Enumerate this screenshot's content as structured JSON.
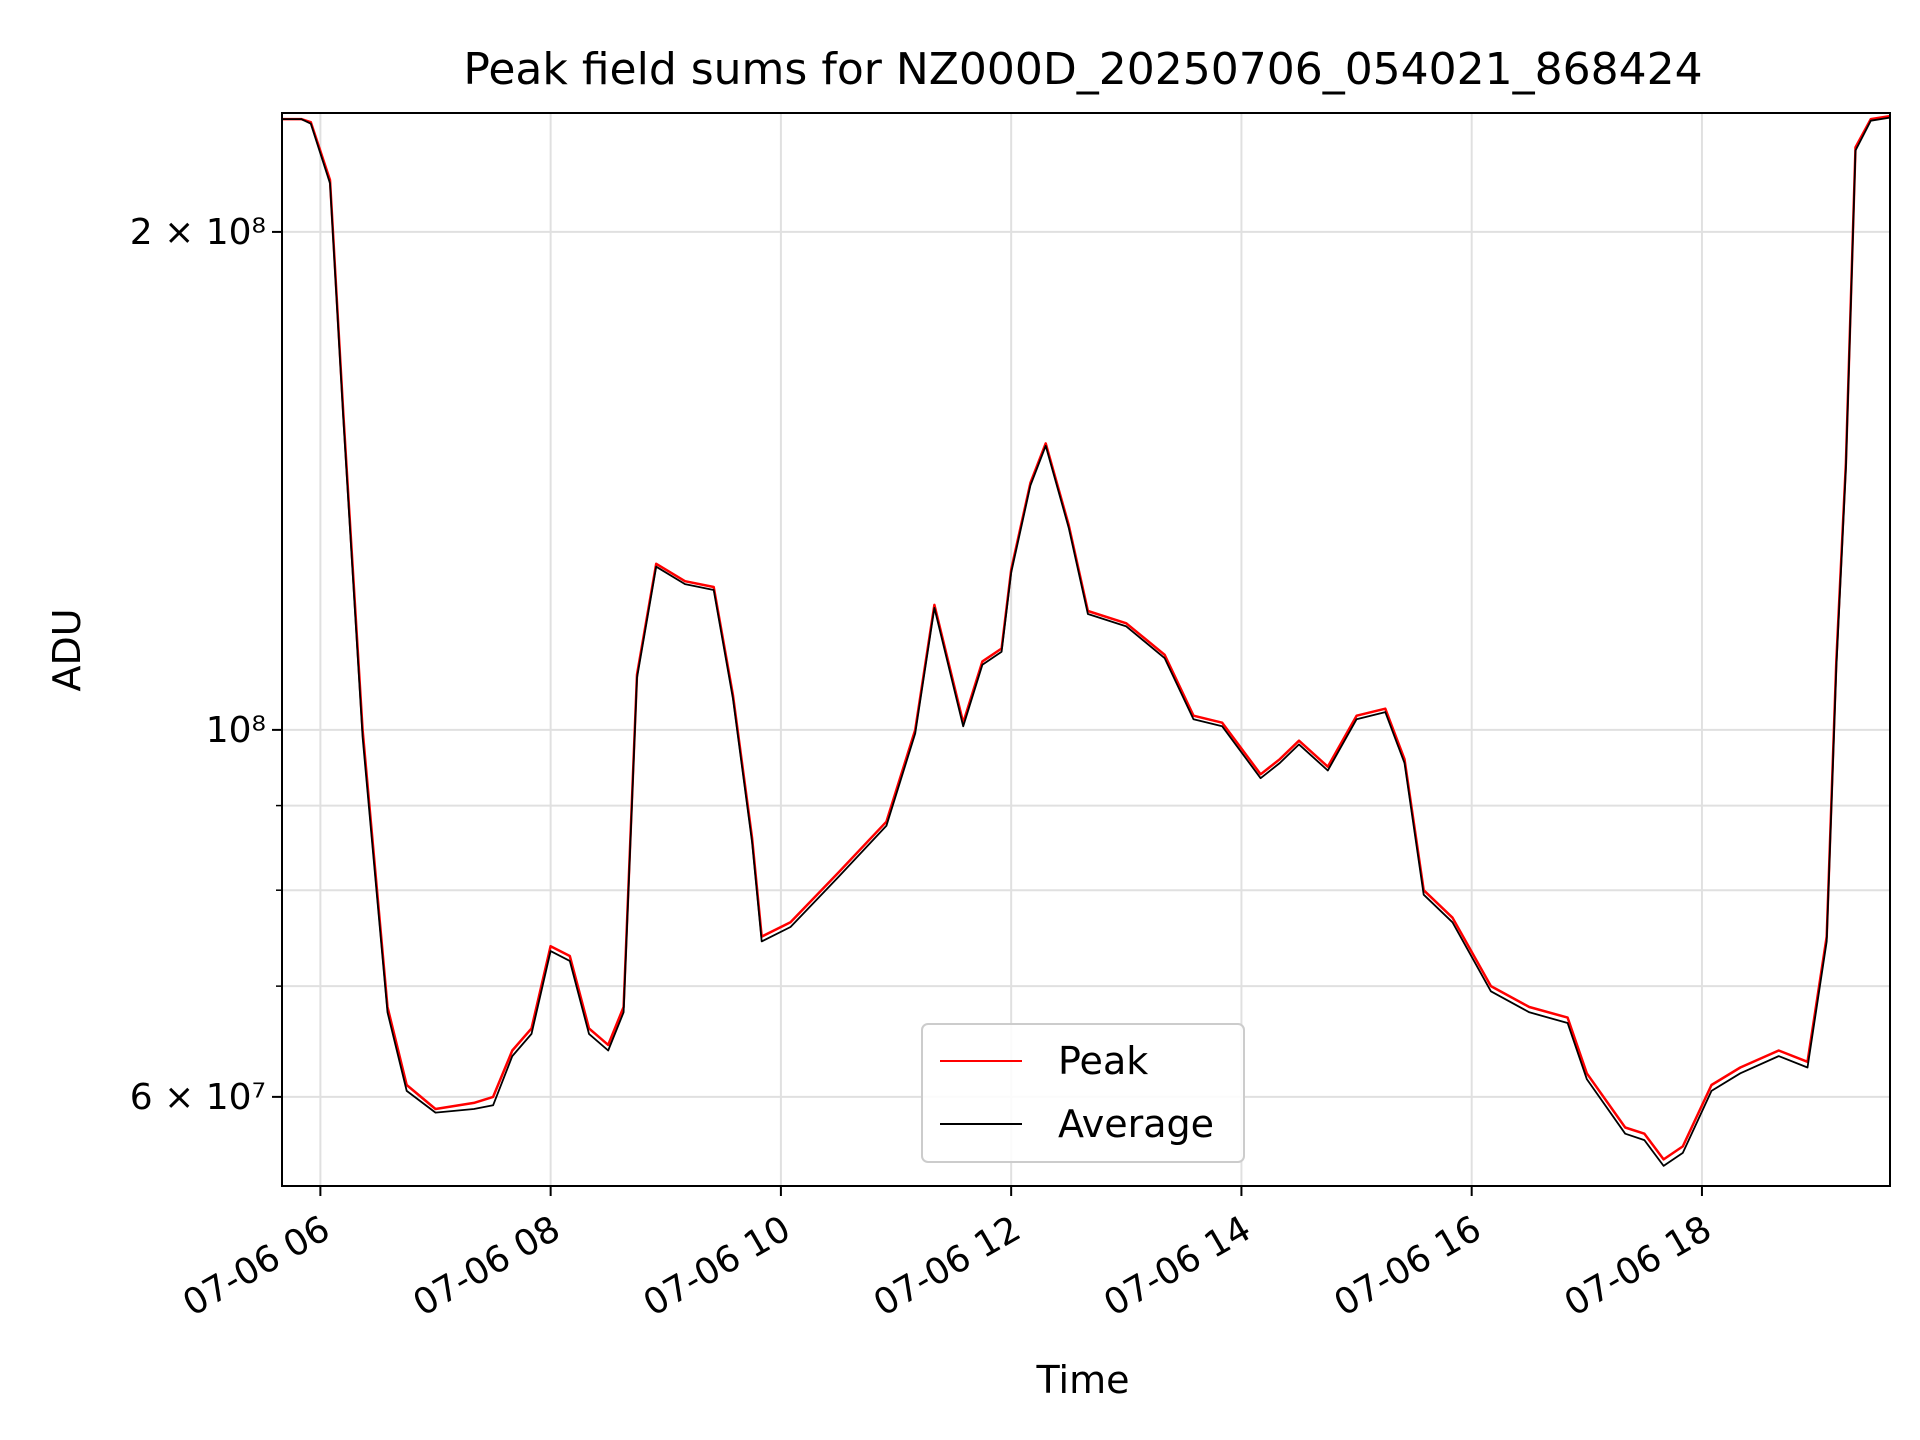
{
  "chart_data": {
    "type": "line",
    "title": "Peak field sums for NZ000D_20250706_054021_868424",
    "xlabel": "Time",
    "ylabel": "ADU",
    "y_scale": "log",
    "grid": true,
    "legend_position": "lower center",
    "xlim": [
      "2025-07-06 05:40",
      "2025-07-06 19:38"
    ],
    "ylim": [
      53000000,
      236000000
    ],
    "x_ticks": [
      {
        "value": "2025-07-06 06:00",
        "label": "07-06 06"
      },
      {
        "value": "2025-07-06 08:00",
        "label": "07-06 08"
      },
      {
        "value": "2025-07-06 10:00",
        "label": "07-06 10"
      },
      {
        "value": "2025-07-06 12:00",
        "label": "07-06 12"
      },
      {
        "value": "2025-07-06 14:00",
        "label": "07-06 14"
      },
      {
        "value": "2025-07-06 16:00",
        "label": "07-06 16"
      },
      {
        "value": "2025-07-06 18:00",
        "label": "07-06 18"
      }
    ],
    "y_ticks_major": [
      {
        "value": 60000000,
        "label": "6 × 10⁷"
      },
      {
        "value": 100000000,
        "label": "10⁸"
      },
      {
        "value": 200000000,
        "label": "2 × 10⁸"
      }
    ],
    "y_ticks_minor": [
      70000000,
      80000000,
      90000000
    ],
    "series": [
      {
        "name": "Peak",
        "color": "#ff0000",
        "x": [
          "2025-07-06 05:40",
          "2025-07-06 05:50",
          "2025-07-06 05:55",
          "2025-07-06 06:05",
          "2025-07-06 06:12",
          "2025-07-06 06:22",
          "2025-07-06 06:35",
          "2025-07-06 06:45",
          "2025-07-06 07:00",
          "2025-07-06 07:20",
          "2025-07-06 07:30",
          "2025-07-06 07:40",
          "2025-07-06 07:50",
          "2025-07-06 08:00",
          "2025-07-06 08:10",
          "2025-07-06 08:20",
          "2025-07-06 08:30",
          "2025-07-06 08:38",
          "2025-07-06 08:45",
          "2025-07-06 08:55",
          "2025-07-06 09:10",
          "2025-07-06 09:25",
          "2025-07-06 09:35",
          "2025-07-06 09:45",
          "2025-07-06 09:50",
          "2025-07-06 10:05",
          "2025-07-06 10:30",
          "2025-07-06 10:55",
          "2025-07-06 11:10",
          "2025-07-06 11:20",
          "2025-07-06 11:35",
          "2025-07-06 11:45",
          "2025-07-06 11:55",
          "2025-07-06 12:00",
          "2025-07-06 12:10",
          "2025-07-06 12:18",
          "2025-07-06 12:30",
          "2025-07-06 12:40",
          "2025-07-06 13:00",
          "2025-07-06 13:20",
          "2025-07-06 13:35",
          "2025-07-06 13:50",
          "2025-07-06 14:10",
          "2025-07-06 14:20",
          "2025-07-06 14:30",
          "2025-07-06 14:45",
          "2025-07-06 15:00",
          "2025-07-06 15:15",
          "2025-07-06 15:25",
          "2025-07-06 15:35",
          "2025-07-06 15:50",
          "2025-07-06 16:10",
          "2025-07-06 16:30",
          "2025-07-06 16:50",
          "2025-07-06 17:00",
          "2025-07-06 17:20",
          "2025-07-06 17:30",
          "2025-07-06 17:40",
          "2025-07-06 17:50",
          "2025-07-06 18:05",
          "2025-07-06 18:20",
          "2025-07-06 18:40",
          "2025-07-06 18:55",
          "2025-07-06 19:05",
          "2025-07-06 19:10",
          "2025-07-06 19:15",
          "2025-07-06 19:20",
          "2025-07-06 19:28",
          "2025-07-06 19:38"
        ],
        "values": [
          234000000,
          234000000,
          233000000,
          215000000,
          155000000,
          100000000,
          68000000,
          61000000,
          59000000,
          59500000,
          60000000,
          64000000,
          66000000,
          74000000,
          73000000,
          66000000,
          64500000,
          68000000,
          108000000,
          126000000,
          123000000,
          122000000,
          105000000,
          86000000,
          75000000,
          76500000,
          82000000,
          88000000,
          100000000,
          119000000,
          101000000,
          110000000,
          112000000,
          125000000,
          141000000,
          149000000,
          133000000,
          118000000,
          116000000,
          111000000,
          102000000,
          101000000,
          94000000,
          96000000,
          98500000,
          95000000,
          102000000,
          103000000,
          96000000,
          80000000,
          77000000,
          70000000,
          68000000,
          67000000,
          62000000,
          57500000,
          57000000,
          55000000,
          56000000,
          61000000,
          62500000,
          64000000,
          63000000,
          75000000,
          110000000,
          145000000,
          225000000,
          234000000,
          235000000
        ]
      },
      {
        "name": "Average",
        "color": "#000000",
        "x": [
          "2025-07-06 05:40",
          "2025-07-06 05:50",
          "2025-07-06 05:55",
          "2025-07-06 06:05",
          "2025-07-06 06:12",
          "2025-07-06 06:22",
          "2025-07-06 06:35",
          "2025-07-06 06:45",
          "2025-07-06 07:00",
          "2025-07-06 07:20",
          "2025-07-06 07:30",
          "2025-07-06 07:40",
          "2025-07-06 07:50",
          "2025-07-06 08:00",
          "2025-07-06 08:10",
          "2025-07-06 08:20",
          "2025-07-06 08:30",
          "2025-07-06 08:38",
          "2025-07-06 08:45",
          "2025-07-06 08:55",
          "2025-07-06 09:10",
          "2025-07-06 09:25",
          "2025-07-06 09:35",
          "2025-07-06 09:45",
          "2025-07-06 09:50",
          "2025-07-06 10:05",
          "2025-07-06 10:30",
          "2025-07-06 10:55",
          "2025-07-06 11:10",
          "2025-07-06 11:20",
          "2025-07-06 11:35",
          "2025-07-06 11:45",
          "2025-07-06 11:55",
          "2025-07-06 12:00",
          "2025-07-06 12:10",
          "2025-07-06 12:18",
          "2025-07-06 12:30",
          "2025-07-06 12:40",
          "2025-07-06 13:00",
          "2025-07-06 13:20",
          "2025-07-06 13:35",
          "2025-07-06 13:50",
          "2025-07-06 14:10",
          "2025-07-06 14:20",
          "2025-07-06 14:30",
          "2025-07-06 14:45",
          "2025-07-06 15:00",
          "2025-07-06 15:15",
          "2025-07-06 15:25",
          "2025-07-06 15:35",
          "2025-07-06 15:50",
          "2025-07-06 16:10",
          "2025-07-06 16:30",
          "2025-07-06 16:50",
          "2025-07-06 17:00",
          "2025-07-06 17:20",
          "2025-07-06 17:30",
          "2025-07-06 17:40",
          "2025-07-06 17:50",
          "2025-07-06 18:05",
          "2025-07-06 18:20",
          "2025-07-06 18:40",
          "2025-07-06 18:55",
          "2025-07-06 19:05",
          "2025-07-06 19:10",
          "2025-07-06 19:15",
          "2025-07-06 19:20",
          "2025-07-06 19:28",
          "2025-07-06 19:38"
        ],
        "values": [
          234000000,
          234000000,
          232500000,
          214000000,
          154000000,
          99000000,
          67500000,
          60500000,
          58700000,
          59000000,
          59300000,
          63500000,
          65500000,
          73500000,
          72500000,
          65500000,
          64000000,
          67500000,
          107500000,
          125500000,
          122500000,
          121500000,
          104500000,
          85500000,
          74500000,
          76000000,
          81500000,
          87500000,
          99500000,
          118500000,
          100500000,
          109500000,
          111500000,
          124500000,
          140500000,
          148500000,
          132500000,
          117500000,
          115500000,
          110500000,
          101500000,
          100500000,
          93500000,
          95500000,
          98000000,
          94500000,
          101500000,
          102500000,
          95500000,
          79500000,
          76500000,
          69500000,
          67500000,
          66500000,
          61500000,
          57000000,
          56500000,
          54500000,
          55500000,
          60500000,
          62000000,
          63500000,
          62500000,
          74500000,
          109000000,
          144000000,
          224000000,
          233500000,
          234500000
        ]
      }
    ]
  }
}
